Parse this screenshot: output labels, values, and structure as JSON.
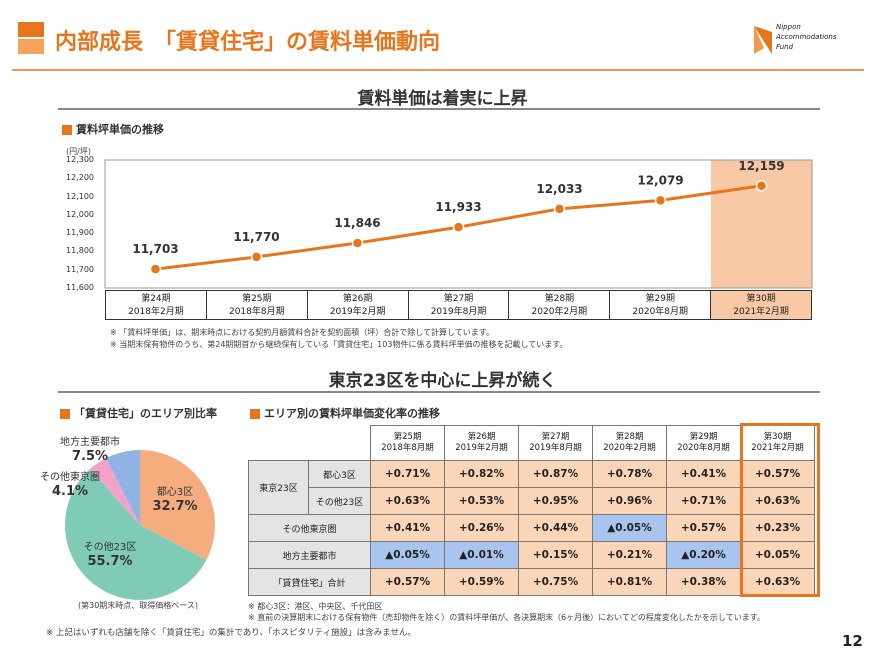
{
  "header": {
    "title": "内部成長　「賃貸住宅」の賃料単価動向",
    "logo": "Nippon Accommodations Fund",
    "accent": "#e8741c"
  },
  "section1": {
    "headline": "賃料単価は着実に上昇",
    "label": "賃料坪単価の推移"
  },
  "chart_data": [
    {
      "type": "line",
      "title": "賃料坪単価の推移",
      "ylabel": "(円/坪)",
      "ylim": [
        11600,
        12300
      ],
      "yticks": [
        "12,300",
        "12,200",
        "12,100",
        "12,000",
        "11,900",
        "11,800",
        "11,700",
        "11,600"
      ],
      "categories": [
        [
          "第24期",
          "2018年2月期"
        ],
        [
          "第25期",
          "2018年8月期"
        ],
        [
          "第26期",
          "2019年2月期"
        ],
        [
          "第27期",
          "2019年8月期"
        ],
        [
          "第28期",
          "2020年2月期"
        ],
        [
          "第29期",
          "2020年8月期"
        ],
        [
          "第30期",
          "2021年2月期"
        ]
      ],
      "values": [
        11703,
        11770,
        11846,
        11933,
        12033,
        12079,
        12159
      ],
      "value_labels": [
        "11,703",
        "11,770",
        "11,846",
        "11,933",
        "12,033",
        "12,079",
        "12,159"
      ],
      "highlight_category": "第30期",
      "series_color": "#e8741c",
      "highlight_color": "#f9c9a6"
    },
    {
      "type": "pie",
      "title": "「賃貸住宅」のエリア別比率",
      "caption": "(第30期末時点、取得価格ベース)",
      "slices": [
        {
          "label": "都心3区",
          "value": 32.7,
          "text": "32.7%",
          "color": "#f5ad80"
        },
        {
          "label": "その他23区",
          "value": 55.7,
          "text": "55.7%",
          "color": "#7fcbb5"
        },
        {
          "label": "その他東京圏",
          "value": 4.1,
          "text": "4.1%",
          "color": "#f2a3c9"
        },
        {
          "label": "地方主要都市",
          "value": 7.5,
          "text": "7.5%",
          "color": "#8fb3e3"
        }
      ]
    }
  ],
  "notes1": [
    "※ 「賃料坪単価」は、期末時点における契約月額賃料合計を契約面積（坪）合計で除して計算しています。",
    "※ 当期末保有物件のうち、第24期期首から継続保有している「賃貸住宅」103物件に係る賃料坪単価の推移を記載しています。"
  ],
  "section2": {
    "headline": "東京23区を中心に上昇が続く",
    "table_label": "エリア別の賃料坪単価変化率の推移"
  },
  "table": {
    "headers": [
      [
        "第25期",
        "2018年8月期"
      ],
      [
        "第26期",
        "2019年2月期"
      ],
      [
        "第27期",
        "2019年8月期"
      ],
      [
        "第28期",
        "2020年2月期"
      ],
      [
        "第29期",
        "2020年8月期"
      ],
      [
        "第30期",
        "2021年2月期"
      ]
    ],
    "group": "東京23区",
    "rows": [
      {
        "label": "都心3区",
        "values": [
          "+0.71%",
          "+0.82%",
          "+0.87%",
          "+0.78%",
          "+0.41%",
          "+0.57%"
        ]
      },
      {
        "label": "その他23区",
        "values": [
          "+0.63%",
          "+0.53%",
          "+0.95%",
          "+0.96%",
          "+0.71%",
          "+0.63%"
        ]
      },
      {
        "label": "その他東京圏",
        "values": [
          "+0.41%",
          "+0.26%",
          "+0.44%",
          "▲0.05%",
          "+0.57%",
          "+0.23%"
        ]
      },
      {
        "label": "地方主要都市",
        "values": [
          "▲0.05%",
          "▲0.01%",
          "+0.15%",
          "+0.21%",
          "▲0.20%",
          "+0.05%"
        ]
      },
      {
        "label": "「賃貸住宅」合計",
        "values": [
          "+0.57%",
          "+0.59%",
          "+0.75%",
          "+0.81%",
          "+0.38%",
          "+0.63%"
        ]
      }
    ]
  },
  "notes2": [
    "※ 都心3区：港区、中央区、千代田区",
    "※ 直前の決算期末における保有物件（売却物件を除く）の賃料坪単価が、各決算期末（6ヶ月後）においてどの程度変化したかを示しています。"
  ],
  "footer_note": "※ 上記はいずれも店舗を除く「賃貸住宅」の集計であり、「ホスピタリティ施設」は含みません。",
  "page_number": "12"
}
